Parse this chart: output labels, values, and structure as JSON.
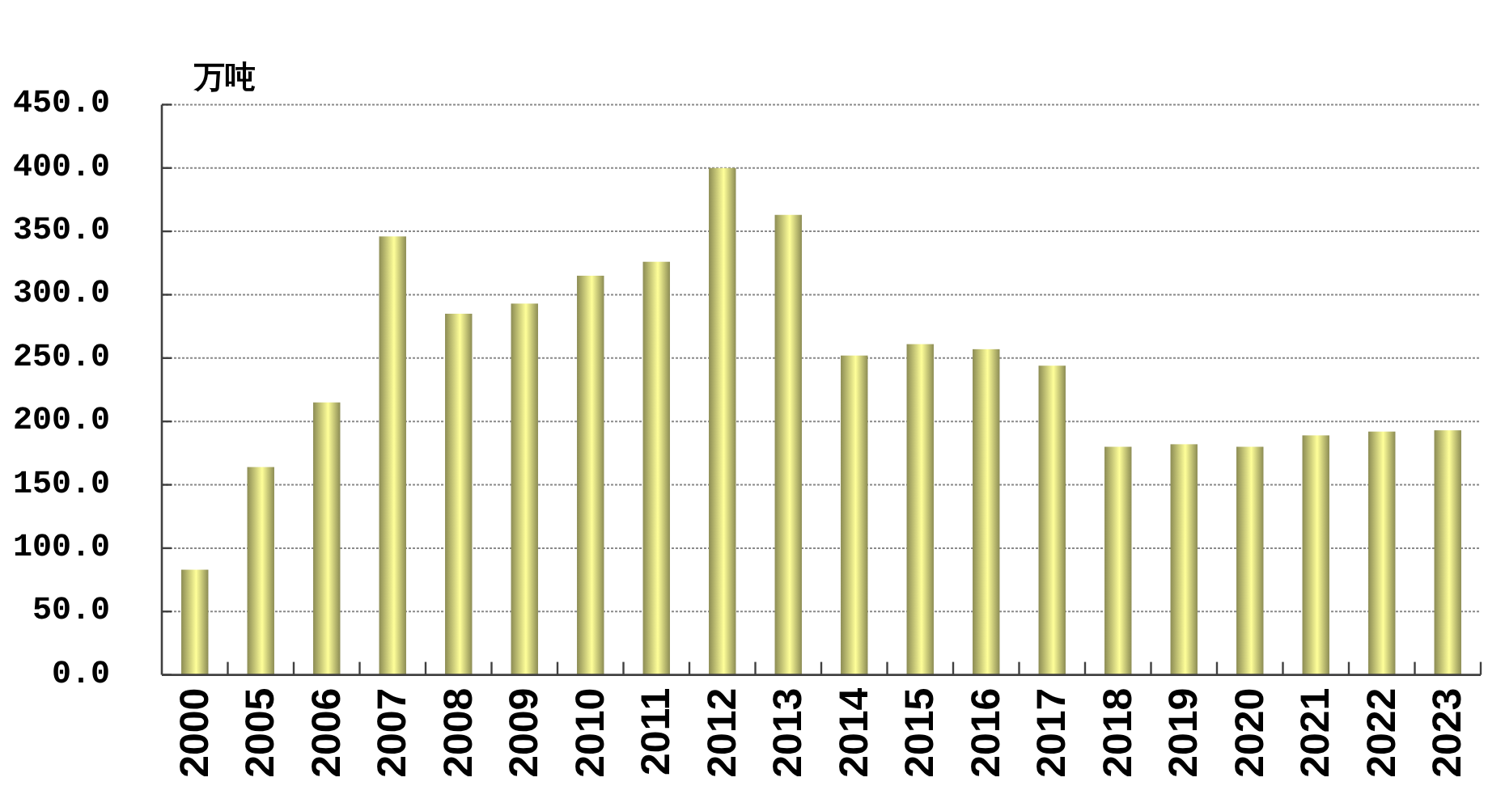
{
  "chart_data": {
    "type": "bar",
    "ylabel": "万吨",
    "categories": [
      "2000",
      "2005",
      "2006",
      "2007",
      "2008",
      "2009",
      "2010",
      "2011",
      "2012",
      "2013",
      "2014",
      "2015",
      "2016",
      "2017",
      "2018",
      "2019",
      "2020",
      "2021",
      "2022",
      "2023"
    ],
    "values": [
      83,
      164,
      215,
      346,
      285,
      293,
      315,
      326,
      400,
      363,
      252,
      261,
      257,
      244,
      180,
      182,
      180,
      189,
      192,
      193
    ],
    "color": "#ffff99",
    "ylim": [
      0,
      450
    ],
    "yticks": [
      {
        "value": 0,
        "label": "0.0"
      },
      {
        "value": 50,
        "label": "50.0"
      },
      {
        "value": 100,
        "label": "100.0"
      },
      {
        "value": 150,
        "label": "150.0"
      },
      {
        "value": 200,
        "label": "200.0"
      },
      {
        "value": 250,
        "label": "250.0"
      },
      {
        "value": 300,
        "label": "300.0"
      },
      {
        "value": 350,
        "label": "350.0"
      },
      {
        "value": 400,
        "label": "400.0"
      },
      {
        "value": 450,
        "label": "450.0"
      }
    ],
    "grid": "y"
  }
}
